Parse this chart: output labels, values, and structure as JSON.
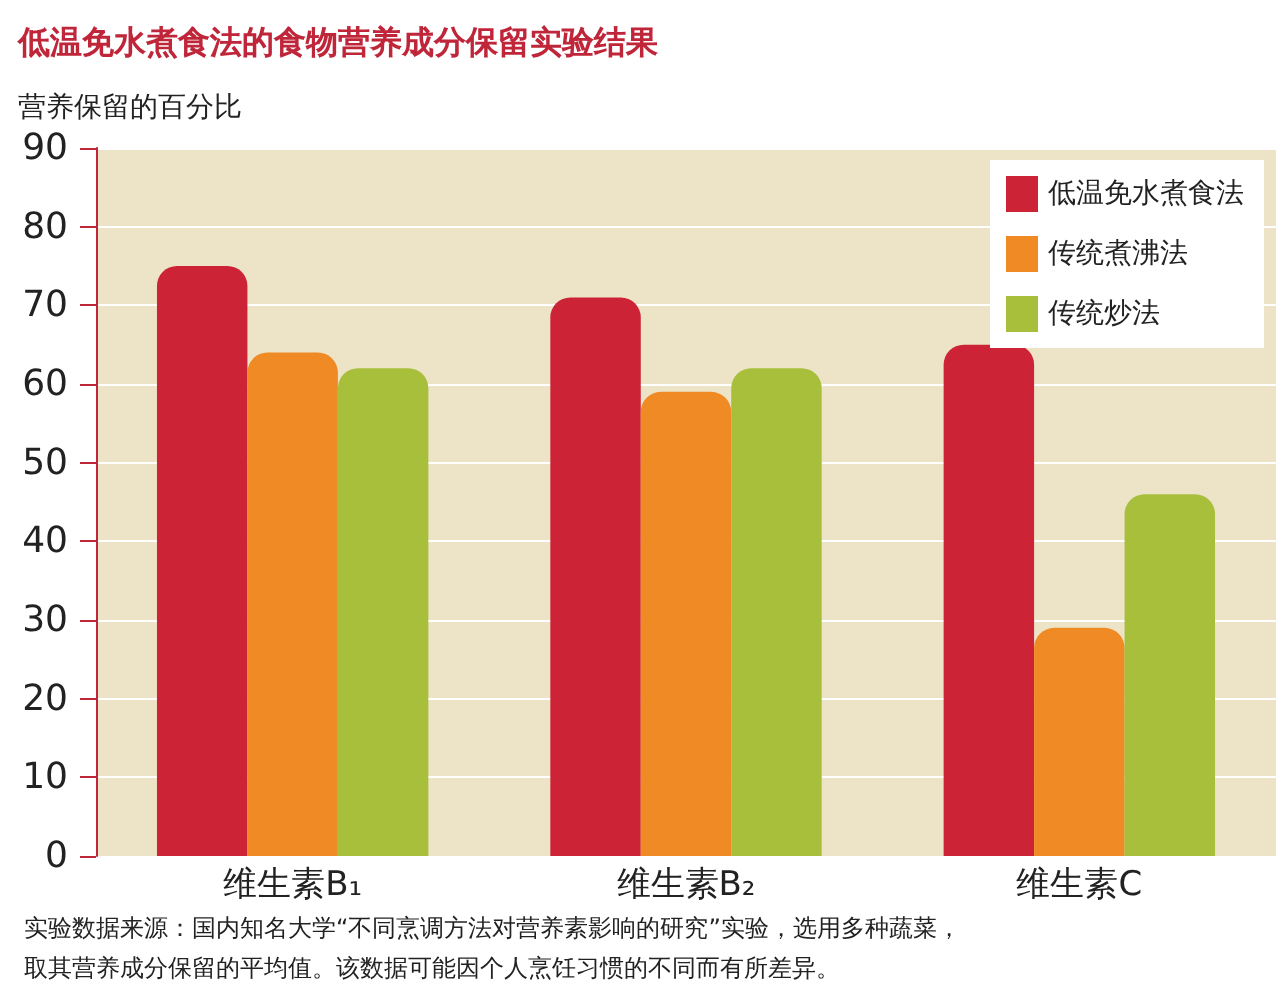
{
  "chart_data": {
    "type": "bar",
    "title": "低温免水煮食法的食物营养成分保留实验结果",
    "ylabel": "营养保留的百分比",
    "categories": [
      "维生素B₁",
      "维生素B₂",
      "维生素C"
    ],
    "series": [
      {
        "name": "低温免水煮食法",
        "color": "#cc2436",
        "values": [
          75,
          71,
          65
        ]
      },
      {
        "name": "传统煮沸法",
        "color": "#f08a24",
        "values": [
          64,
          59,
          29
        ]
      },
      {
        "name": "传统炒法",
        "color": "#a8bf3c",
        "values": [
          62,
          62,
          46
        ]
      }
    ],
    "ylim": [
      0,
      90
    ],
    "yticks": [
      0,
      10,
      20,
      30,
      40,
      50,
      60,
      70,
      80,
      90
    ],
    "grid": "y",
    "legend": "top right",
    "annotations": [
      "实验数据来源：国内知名大学“不同烹调方法对营养素影响的研究”实验，选用多种蔬菜，",
      "取其营养成分保留的平均值。该数据可能因个人烹饪习惯的不同而有所差异。"
    ]
  }
}
